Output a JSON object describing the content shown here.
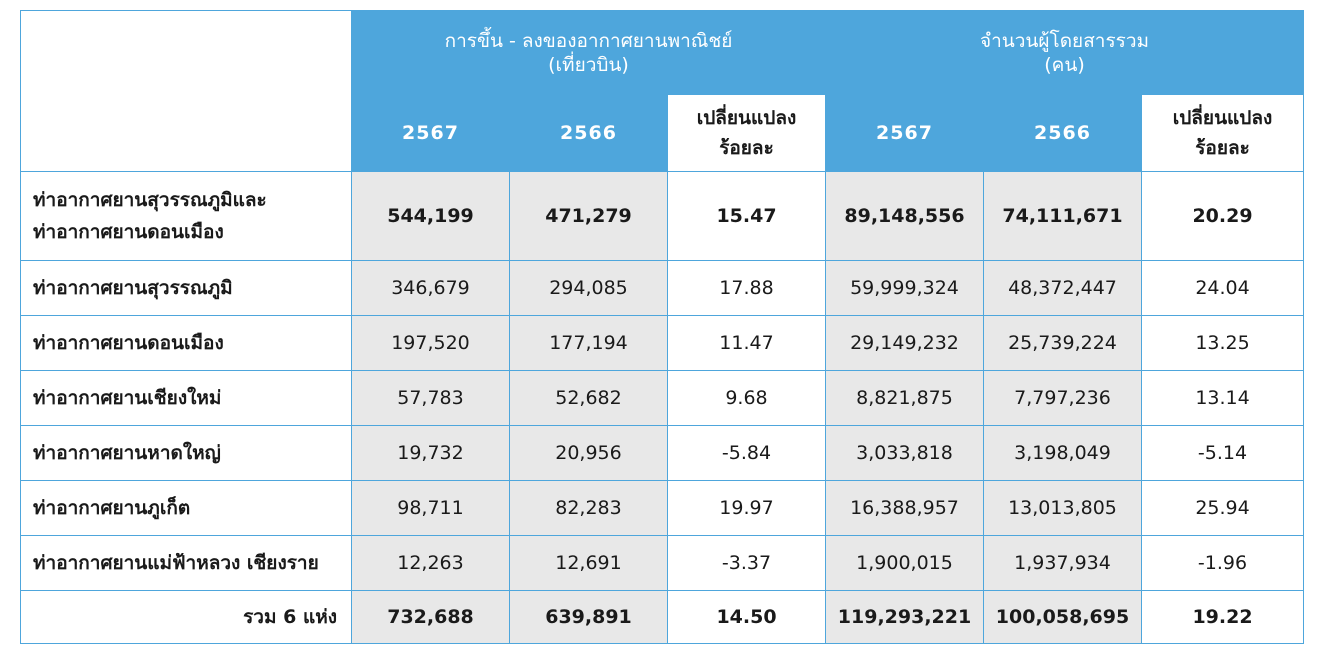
{
  "header": {
    "flights_group": "การขึ้น - ลงของอากาศยานพาณิชย์",
    "flights_unit": "(เที่ยวบิน)",
    "passengers_group": "จำนวนผู้โดยสารรวม",
    "passengers_unit": "(คน)",
    "year_current": "2567",
    "year_previous": "2566",
    "change_line1": "เปลี่ยนแปลง",
    "change_line2": "ร้อยละ"
  },
  "rows": [
    {
      "name_line1": "ท่าอากาศยานสุวรรณภูมิและ",
      "name_line2": "ท่าอากาศยานดอนเมือง",
      "f2567": "544,199",
      "f2566": "471,279",
      "fchg": "15.47",
      "p2567": "89,148,556",
      "p2566": "74,111,671",
      "pchg": "20.29"
    },
    {
      "name": "ท่าอากาศยานสุวรรณภูมิ",
      "f2567": "346,679",
      "f2566": "294,085",
      "fchg": "17.88",
      "p2567": "59,999,324",
      "p2566": "48,372,447",
      "pchg": "24.04"
    },
    {
      "name": "ท่าอากาศยานดอนเมือง",
      "f2567": "197,520",
      "f2566": "177,194",
      "fchg": "11.47",
      "p2567": "29,149,232",
      "p2566": "25,739,224",
      "pchg": "13.25"
    },
    {
      "name": "ท่าอากาศยานเชียงใหม่",
      "f2567": "57,783",
      "f2566": "52,682",
      "fchg": "9.68",
      "p2567": "8,821,875",
      "p2566": "7,797,236",
      "pchg": "13.14"
    },
    {
      "name": "ท่าอากาศยานหาดใหญ่",
      "f2567": "19,732",
      "f2566": "20,956",
      "fchg": "-5.84",
      "p2567": "3,033,818",
      "p2566": "3,198,049",
      "pchg": "-5.14"
    },
    {
      "name": "ท่าอากาศยานภูเก็ต",
      "f2567": "98,711",
      "f2566": "82,283",
      "fchg": "19.97",
      "p2567": "16,388,957",
      "p2566": "13,013,805",
      "pchg": "25.94"
    },
    {
      "name": "ท่าอากาศยานแม่ฟ้าหลวง เชียงราย",
      "f2567": "12,263",
      "f2566": "12,691",
      "fchg": "-3.37",
      "p2567": "1,900,015",
      "p2566": "1,937,934",
      "pchg": "-1.96"
    }
  ],
  "total": {
    "label": "รวม 6 แห่ง",
    "f2567": "732,688",
    "f2566": "639,891",
    "fchg": "14.50",
    "p2567": "119,293,221",
    "p2566": "100,058,695",
    "pchg": "19.22"
  },
  "colors": {
    "header_blue": "#4ea6dc",
    "shade_gray": "#e8e8e8"
  }
}
